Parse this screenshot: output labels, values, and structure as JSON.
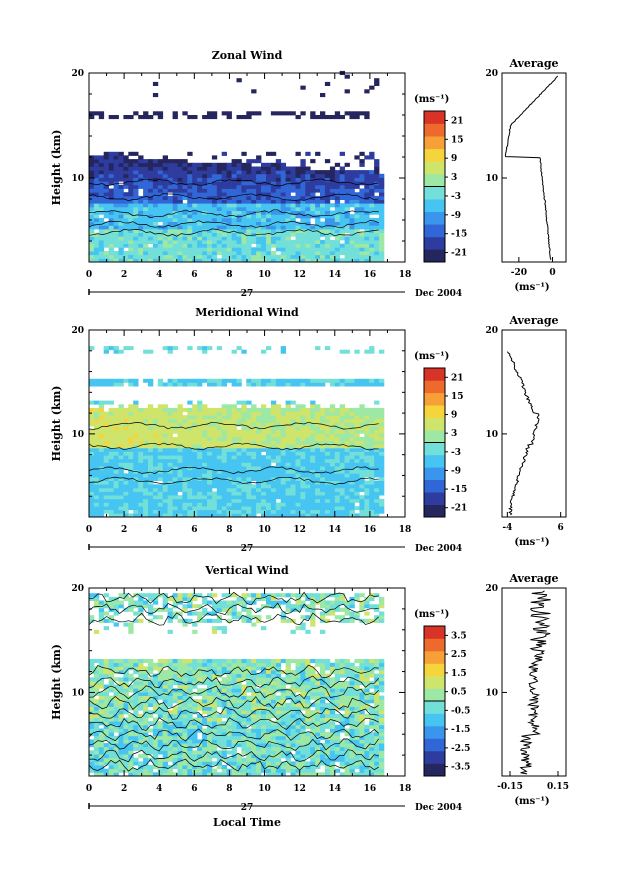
{
  "chart_data": [
    {
      "type": "heatmap",
      "title": "Zonal Wind",
      "ylabel": "Height (km)",
      "xlabel": "",
      "x_ticks": [
        "0",
        "2",
        "4",
        "6",
        "8",
        "10",
        "12",
        "14",
        "16",
        "18"
      ],
      "y_ticks": [
        "10",
        "20"
      ],
      "xlim": [
        0,
        18
      ],
      "ylim": [
        2,
        20
      ],
      "date_label": "Dec 2004",
      "day_label": "27",
      "colorbar": {
        "unit": "(ms⁻¹)",
        "ticks": [
          "21",
          "15",
          "9",
          "3",
          "-3",
          "-9",
          "-15",
          "-21"
        ],
        "range": [
          -24,
          24
        ]
      },
      "average": {
        "title": "Average",
        "x_ticks": [
          "-20",
          "0"
        ],
        "xlim": [
          -30,
          8
        ],
        "xlabel": "(ms⁻¹)",
        "y_ticks": [
          "10",
          "20"
        ]
      }
    },
    {
      "type": "heatmap",
      "title": "Meridional Wind",
      "ylabel": "Height (km)",
      "xlabel": "",
      "x_ticks": [
        "0",
        "2",
        "4",
        "6",
        "8",
        "10",
        "12",
        "14",
        "16",
        "18"
      ],
      "y_ticks": [
        "10",
        "20"
      ],
      "xlim": [
        0,
        18
      ],
      "ylim": [
        2,
        20
      ],
      "date_label": "Dec 2004",
      "day_label": "27",
      "colorbar": {
        "unit": "(ms⁻¹)",
        "ticks": [
          "21",
          "15",
          "9",
          "3",
          "-3",
          "-9",
          "-15",
          "-21"
        ],
        "range": [
          -24,
          24
        ]
      },
      "average": {
        "title": "Average",
        "x_ticks": [
          "-4",
          "6"
        ],
        "xlim": [
          -5,
          7
        ],
        "xlabel": "(ms⁻¹)",
        "y_ticks": [
          "10",
          "20"
        ]
      }
    },
    {
      "type": "heatmap",
      "title": "Vertical Wind",
      "ylabel": "Height (km)",
      "xlabel": "Local Time",
      "x_ticks": [
        "0",
        "2",
        "4",
        "6",
        "8",
        "10",
        "12",
        "14",
        "16",
        "18"
      ],
      "y_ticks": [
        "10",
        "20"
      ],
      "xlim": [
        0,
        18
      ],
      "ylim": [
        2,
        20
      ],
      "date_label": "Dec 2004",
      "day_label": "27",
      "colorbar": {
        "unit": "(ms⁻¹)",
        "ticks": [
          "3.5",
          "2.5",
          "1.5",
          "0.5",
          "-0.5",
          "-1.5",
          "-2.5",
          "-3.5"
        ],
        "range": [
          -4,
          4
        ]
      },
      "average": {
        "title": "Average",
        "x_ticks": [
          "-0.15",
          "0.15"
        ],
        "xlim": [
          -0.2,
          0.2
        ],
        "xlabel": "(ms⁻¹)",
        "y_ticks": [
          "10",
          "20"
        ]
      }
    }
  ]
}
